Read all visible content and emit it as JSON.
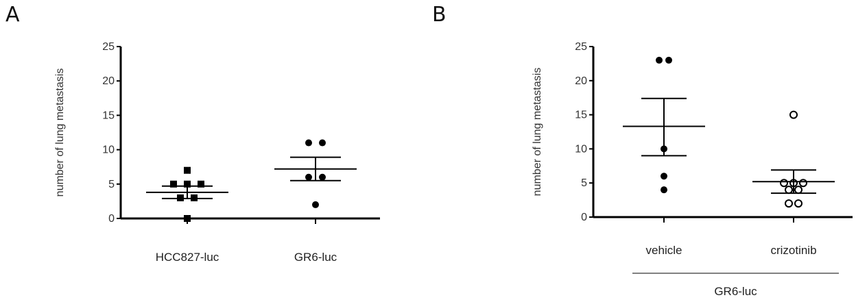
{
  "panels": [
    {
      "letter": "A",
      "chart_data": {
        "type": "scatter",
        "ylabel": "number of lung metastasis",
        "ylim": [
          0,
          25
        ],
        "yticks": [
          0,
          5,
          10,
          15,
          20,
          25
        ],
        "categories": [
          "HCC827-luc",
          "GR6-luc"
        ],
        "group_label": "",
        "series": [
          {
            "category": "HCC827-luc",
            "marker": "square-filled",
            "points": [
              7,
              5,
              5,
              5,
              3,
              3,
              0
            ],
            "mean": 3.8,
            "sem": [
              2.9,
              4.7
            ]
          },
          {
            "category": "GR6-luc",
            "marker": "circle-filled",
            "points": [
              11,
              11,
              6,
              6,
              2
            ],
            "mean": 7.2,
            "sem": [
              5.5,
              8.9
            ]
          }
        ]
      }
    },
    {
      "letter": "B",
      "chart_data": {
        "type": "scatter",
        "ylabel": "number of lung metastasis",
        "ylim": [
          0,
          25
        ],
        "yticks": [
          0,
          5,
          10,
          15,
          20,
          25
        ],
        "categories": [
          "vehicle",
          "crizotinib"
        ],
        "group_label": "GR6-luc",
        "series": [
          {
            "category": "vehicle",
            "marker": "circle-filled",
            "points": [
              23,
              23,
              10,
              6,
              4
            ],
            "mean": 13.3,
            "sem": [
              9.0,
              17.4
            ]
          },
          {
            "category": "crizotinib",
            "marker": "circle-open",
            "points": [
              15,
              5,
              5,
              5,
              4,
              4,
              2,
              2
            ],
            "mean": 5.2,
            "sem": [
              3.5,
              6.9
            ]
          }
        ]
      }
    }
  ]
}
